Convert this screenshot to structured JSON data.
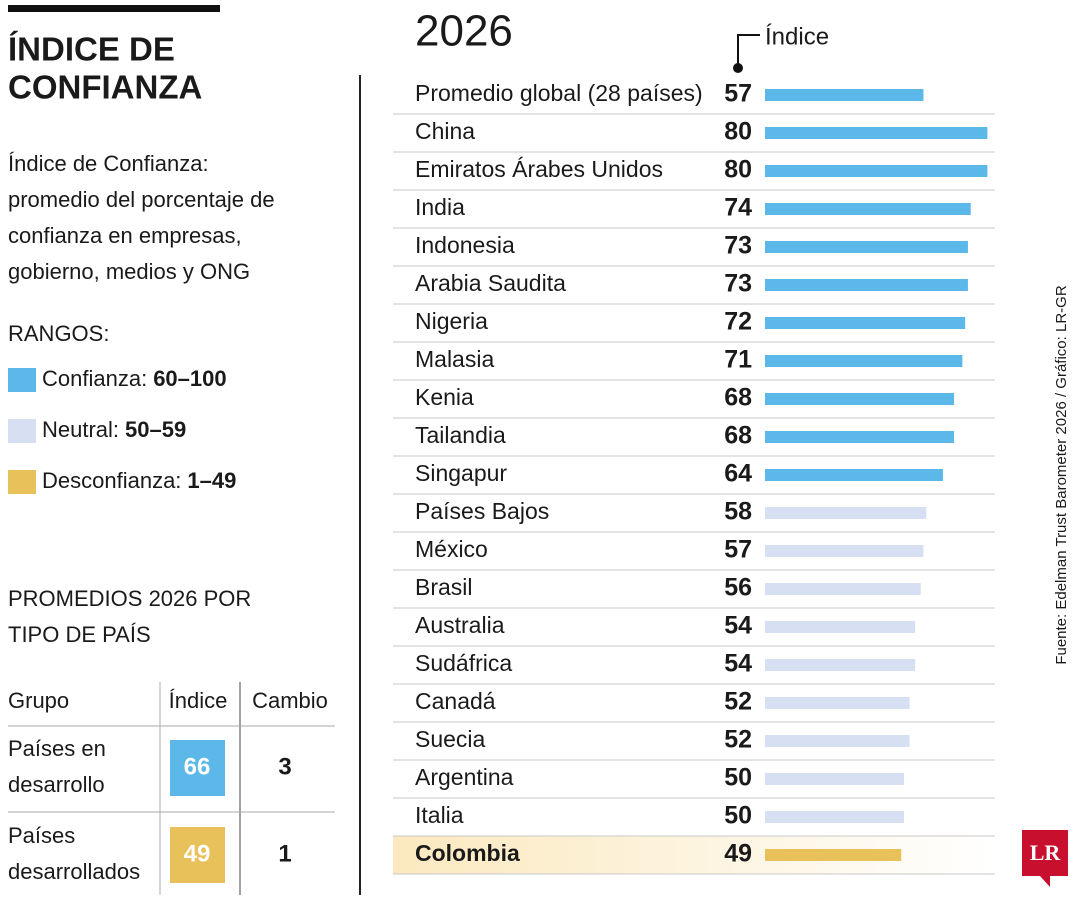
{
  "header": {
    "title": [
      "ÍNDICE DE",
      "CONFIANZA"
    ],
    "description": [
      "Índice de Confianza:",
      "promedio del porcentaje de",
      "confianza en empresas,",
      "gobierno, medios y ONG"
    ]
  },
  "legend": {
    "title": "RANGOS:",
    "items": [
      {
        "label": "Confianza:",
        "range": "60–100",
        "color": "#5bb8e8"
      },
      {
        "label": "Neutral:",
        "range": "50–59",
        "color": "#d6e0f2"
      },
      {
        "label": "Desconfianza:",
        "range": "1–49",
        "color": "#e8c15a"
      }
    ]
  },
  "table": {
    "title": [
      "PROMEDIOS 2026 POR",
      "TIPO DE PAÍS"
    ],
    "headers": [
      "Grupo",
      "Índice",
      "Cambio"
    ],
    "rows": [
      {
        "group": [
          "Países en",
          "desarrollo"
        ],
        "index": "66",
        "change": "3",
        "color": "#5bb8e8"
      },
      {
        "group": [
          "Países",
          "desarrollados"
        ],
        "index": "49",
        "change": "1",
        "color": "#e8c15a"
      }
    ]
  },
  "source": "Fuente: Edelman Trust Barometer 2026 / Gráfico: LR-GR",
  "logo": "LR",
  "chart_data": {
    "type": "bar",
    "title": "2026",
    "value_label": "Índice",
    "categories": [
      "Promedio global (28 países)",
      "China",
      "Emiratos Árabes Unidos",
      "India",
      "Indonesia",
      "Arabia Saudita",
      "Nigeria",
      "Malasia",
      "Kenia",
      "Tailandia",
      "Singapur",
      "Países Bajos",
      "México",
      "Brasil",
      "Australia",
      "Sudáfrica",
      "Canadá",
      "Suecia",
      "Argentina",
      "Italia",
      "Colombia"
    ],
    "values": [
      57,
      80,
      80,
      74,
      73,
      73,
      72,
      71,
      68,
      68,
      64,
      58,
      57,
      56,
      54,
      54,
      52,
      52,
      50,
      50,
      49
    ],
    "colors": [
      "#5bb8e8",
      "#5bb8e8",
      "#5bb8e8",
      "#5bb8e8",
      "#5bb8e8",
      "#5bb8e8",
      "#5bb8e8",
      "#5bb8e8",
      "#5bb8e8",
      "#5bb8e8",
      "#5bb8e8",
      "#d6e0f2",
      "#d6e0f2",
      "#d6e0f2",
      "#d6e0f2",
      "#d6e0f2",
      "#d6e0f2",
      "#d6e0f2",
      "#d6e0f2",
      "#d6e0f2",
      "#e8c15a"
    ],
    "highlight": [
      20
    ]
  }
}
